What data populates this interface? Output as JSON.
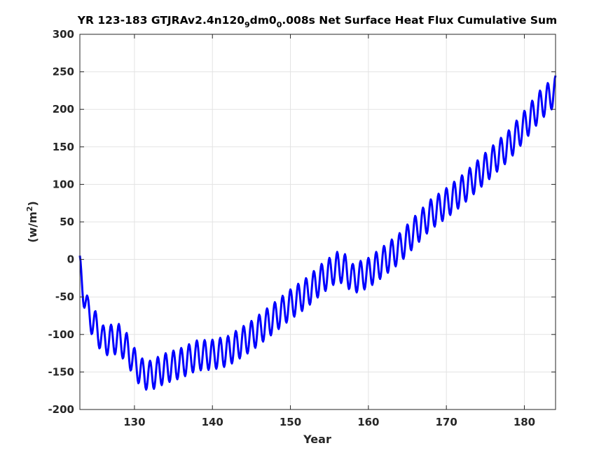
{
  "chart_data": {
    "type": "line",
    "title_parts": {
      "pre": "YR 123-183 GTJRAv2.4n120",
      "sub1": "9",
      "mid": "dm0",
      "sub2": "0",
      "post": ".008s Net Surface Heat Flux  Cumulative Sum"
    },
    "xlabel": "Year",
    "ylabel_parts": {
      "pre": "(w/m",
      "sup": "2",
      "post": ")"
    },
    "xlim": [
      123,
      184
    ],
    "ylim": [
      -200,
      300
    ],
    "xticks": [
      130,
      140,
      150,
      160,
      170,
      180
    ],
    "yticks": [
      -200,
      -150,
      -100,
      -50,
      0,
      50,
      100,
      150,
      200,
      250,
      300
    ],
    "grid": true,
    "series": [
      {
        "color": "#0000ff",
        "samples_per_year": 12,
        "seasonal_amplitude": 20,
        "trend_x": [
          123,
          124,
          126,
          128,
          129,
          130,
          131,
          132,
          134,
          136,
          138,
          140,
          142,
          145,
          148,
          150,
          152,
          154,
          156,
          157,
          158,
          160,
          162,
          164,
          166,
          168,
          170,
          172,
          174,
          176,
          178,
          180,
          182,
          184
        ],
        "trend_y": [
          -15,
          -70,
          -108,
          -106,
          -118,
          -138,
          -152,
          -155,
          -145,
          -138,
          -128,
          -127,
          -122,
          -102,
          -77,
          -60,
          -45,
          -26,
          -10,
          -13,
          -26,
          -18,
          -2,
          15,
          38,
          60,
          75,
          92,
          112,
          132,
          152,
          178,
          205,
          225
        ]
      }
    ]
  }
}
